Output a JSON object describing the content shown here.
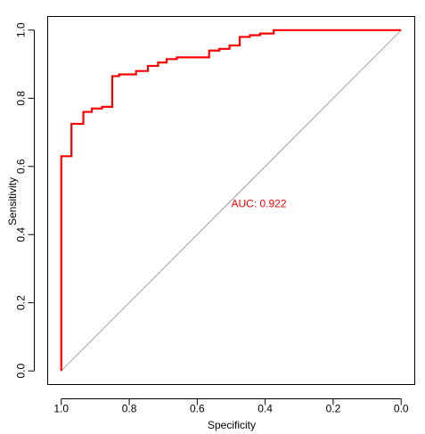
{
  "chart_data": {
    "type": "line",
    "title": "",
    "xlabel": "Specificity",
    "ylabel": "Sensitivity",
    "x_reversed": true,
    "xlim": [
      1.04,
      -0.04
    ],
    "ylim": [
      -0.04,
      1.04
    ],
    "x_ticks": [
      1.0,
      0.8,
      0.6,
      0.4,
      0.2,
      0.0
    ],
    "x_tick_labels": [
      "1.0",
      "0.8",
      "0.6",
      "0.4",
      "0.2",
      "0.0"
    ],
    "y_ticks": [
      0.0,
      0.2,
      0.4,
      0.6,
      0.8,
      1.0
    ],
    "y_tick_labels": [
      "0.0",
      "0.2",
      "0.4",
      "0.6",
      "0.8",
      "1.0"
    ],
    "grid": false,
    "legend": "none",
    "annotation": {
      "text": "AUC: 0.922",
      "x": 0.5,
      "y": 0.48,
      "color": "#ff0000"
    },
    "reference_line": {
      "from": [
        1.0,
        0.0
      ],
      "to": [
        0.0,
        1.0
      ],
      "color": "#a0a0a0"
    },
    "series": [
      {
        "color": "#ff0000",
        "specificity": [
          1.0,
          1.0,
          0.97,
          0.97,
          0.935,
          0.935,
          0.91,
          0.91,
          0.88,
          0.88,
          0.85,
          0.85,
          0.83,
          0.83,
          0.78,
          0.78,
          0.745,
          0.745,
          0.715,
          0.715,
          0.69,
          0.69,
          0.66,
          0.66,
          0.565,
          0.565,
          0.535,
          0.535,
          0.505,
          0.505,
          0.475,
          0.475,
          0.445,
          0.445,
          0.415,
          0.415,
          0.375,
          0.375,
          0.0
        ],
        "sensitivity": [
          0.0,
          0.63,
          0.63,
          0.725,
          0.725,
          0.76,
          0.76,
          0.77,
          0.77,
          0.775,
          0.775,
          0.865,
          0.865,
          0.87,
          0.87,
          0.88,
          0.88,
          0.895,
          0.895,
          0.905,
          0.905,
          0.915,
          0.915,
          0.92,
          0.92,
          0.94,
          0.94,
          0.945,
          0.945,
          0.955,
          0.955,
          0.98,
          0.98,
          0.985,
          0.985,
          0.99,
          0.99,
          1.0,
          1.0
        ]
      }
    ]
  }
}
